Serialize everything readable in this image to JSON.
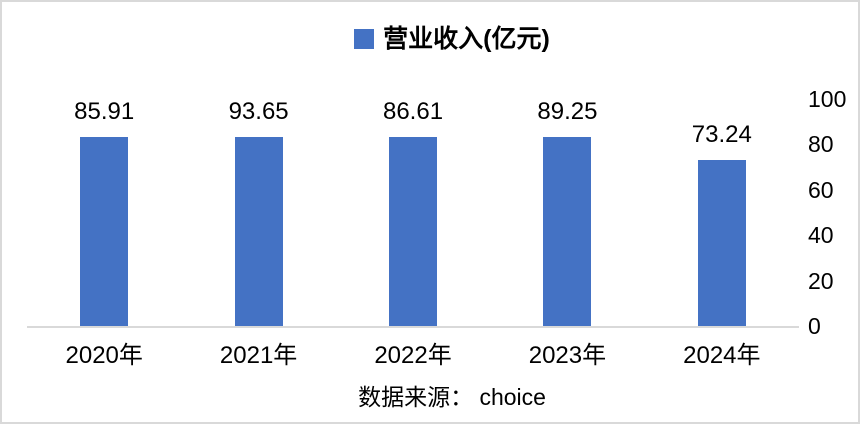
{
  "chart_data": {
    "type": "bar",
    "title": "",
    "legend": "营业收入(亿元)",
    "legend_position": "top-center",
    "categories": [
      "2020年",
      "2021年",
      "2022年",
      "2023年",
      "2024年"
    ],
    "values": [
      85.91,
      93.65,
      86.61,
      89.25,
      73.24
    ],
    "value_labels": [
      "85.91",
      "93.65",
      "86.61",
      "89.25",
      "73.24"
    ],
    "ylim": [
      0,
      100
    ],
    "yticks": [
      0,
      20,
      40,
      60,
      80,
      100
    ],
    "yaxis_side": "right",
    "grid": false,
    "bar_color": "#4472C4",
    "axis_line_color": "#D9D9D9",
    "source_note": "数据来源： choice"
  }
}
